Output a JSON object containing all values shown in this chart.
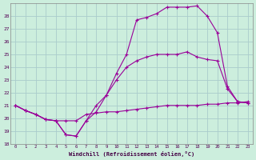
{
  "xlabel": "Windchill (Refroidissement éolien,°C)",
  "bg_color": "#cceedd",
  "grid_color": "#aacccc",
  "line_color": "#990099",
  "xlim": [
    -0.5,
    23.5
  ],
  "ylim": [
    18,
    29
  ],
  "yticks": [
    18,
    19,
    20,
    21,
    22,
    23,
    24,
    25,
    26,
    27,
    28
  ],
  "xticks": [
    0,
    1,
    2,
    3,
    4,
    5,
    6,
    7,
    8,
    9,
    10,
    11,
    12,
    13,
    14,
    15,
    16,
    17,
    18,
    19,
    20,
    21,
    22,
    23
  ],
  "line1_x": [
    0,
    1,
    2,
    3,
    4,
    5,
    6,
    7,
    8,
    9,
    10,
    11,
    12,
    13,
    14,
    15,
    16,
    17,
    18,
    19,
    20,
    21,
    22,
    23
  ],
  "line1_y": [
    21.0,
    20.6,
    20.3,
    19.9,
    19.8,
    19.8,
    19.8,
    20.3,
    20.4,
    20.5,
    20.5,
    20.6,
    20.7,
    20.8,
    20.9,
    21.0,
    21.0,
    21.0,
    21.0,
    21.1,
    21.1,
    21.2,
    21.2,
    21.3
  ],
  "line2_x": [
    0,
    1,
    2,
    3,
    4,
    5,
    6,
    7,
    8,
    9,
    10,
    11,
    12,
    13,
    14,
    15,
    16,
    17,
    18,
    19,
    20,
    21,
    22,
    23
  ],
  "line2_y": [
    21.0,
    20.6,
    20.3,
    19.9,
    19.8,
    18.7,
    18.6,
    19.8,
    21.0,
    21.8,
    23.5,
    25.0,
    27.7,
    27.9,
    28.2,
    28.7,
    28.7,
    28.7,
    28.8,
    28.0,
    26.7,
    22.5,
    21.3,
    21.2
  ],
  "line3_x": [
    0,
    1,
    2,
    3,
    4,
    5,
    6,
    7,
    8,
    9,
    10,
    11,
    12,
    13,
    14,
    15,
    16,
    17,
    18,
    19,
    20,
    21,
    22,
    23
  ],
  "line3_y": [
    21.0,
    20.6,
    20.3,
    19.9,
    19.8,
    18.7,
    18.6,
    19.8,
    20.5,
    21.8,
    23.0,
    24.0,
    24.5,
    24.8,
    25.0,
    25.0,
    25.0,
    25.2,
    24.8,
    24.6,
    24.5,
    22.3,
    21.3,
    21.2
  ]
}
